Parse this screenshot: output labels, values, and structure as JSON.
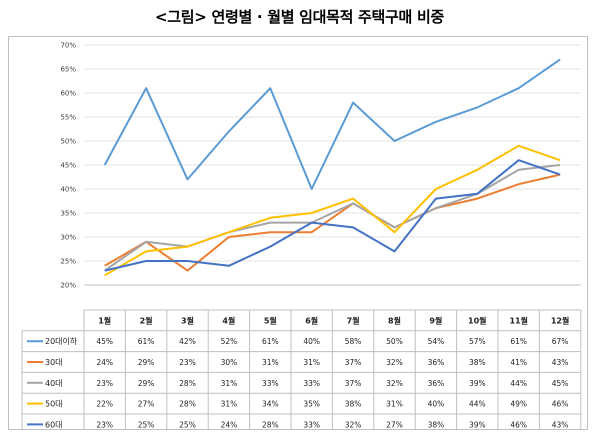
{
  "page": {
    "title": "<그림> 연령별 · 월별 임대목적 주택구매 비중"
  },
  "chart_data": {
    "type": "line",
    "categories": [
      "1월",
      "2월",
      "3월",
      "4월",
      "5월",
      "6월",
      "7월",
      "8월",
      "9월",
      "10월",
      "11월",
      "12월"
    ],
    "y_ticks": [
      "20%",
      "25%",
      "30%",
      "35%",
      "40%",
      "45%",
      "50%",
      "55%",
      "60%",
      "65%",
      "70%"
    ],
    "ylim": [
      20,
      70
    ],
    "y_unit": "%",
    "legend_placement": "data-table-left",
    "series": [
      {
        "name": "20대이하",
        "color": "#5b9bd5",
        "values": [
          45,
          61,
          42,
          52,
          61,
          40,
          58,
          50,
          54,
          57,
          61,
          67
        ],
        "labels": [
          "45%",
          "61%",
          "42%",
          "52%",
          "61%",
          "40%",
          "58%",
          "50%",
          "54%",
          "57%",
          "61%",
          "67%"
        ]
      },
      {
        "name": "30대",
        "color": "#ed7d31",
        "values": [
          24,
          29,
          23,
          30,
          31,
          31,
          37,
          32,
          36,
          38,
          41,
          43
        ],
        "labels": [
          "24%",
          "29%",
          "23%",
          "30%",
          "31%",
          "31%",
          "37%",
          "32%",
          "36%",
          "38%",
          "41%",
          "43%"
        ]
      },
      {
        "name": "40대",
        "color": "#a5a5a5",
        "values": [
          23,
          29,
          28,
          31,
          33,
          33,
          37,
          32,
          36,
          39,
          44,
          45
        ],
        "labels": [
          "23%",
          "29%",
          "28%",
          "31%",
          "33%",
          "33%",
          "37%",
          "32%",
          "36%",
          "39%",
          "44%",
          "45%"
        ]
      },
      {
        "name": "50대",
        "color": "#ffc000",
        "values": [
          22,
          27,
          28,
          31,
          34,
          35,
          38,
          31,
          40,
          44,
          49,
          46
        ],
        "labels": [
          "22%",
          "27%",
          "28%",
          "31%",
          "34%",
          "35%",
          "38%",
          "31%",
          "40%",
          "44%",
          "49%",
          "46%"
        ]
      },
      {
        "name": "60대",
        "color": "#4472c4",
        "values": [
          23,
          25,
          25,
          24,
          28,
          33,
          32,
          27,
          38,
          39,
          46,
          43
        ],
        "labels": [
          "23%",
          "25%",
          "25%",
          "24%",
          "28%",
          "33%",
          "32%",
          "27%",
          "38%",
          "39%",
          "46%",
          "43%"
        ]
      }
    ]
  }
}
